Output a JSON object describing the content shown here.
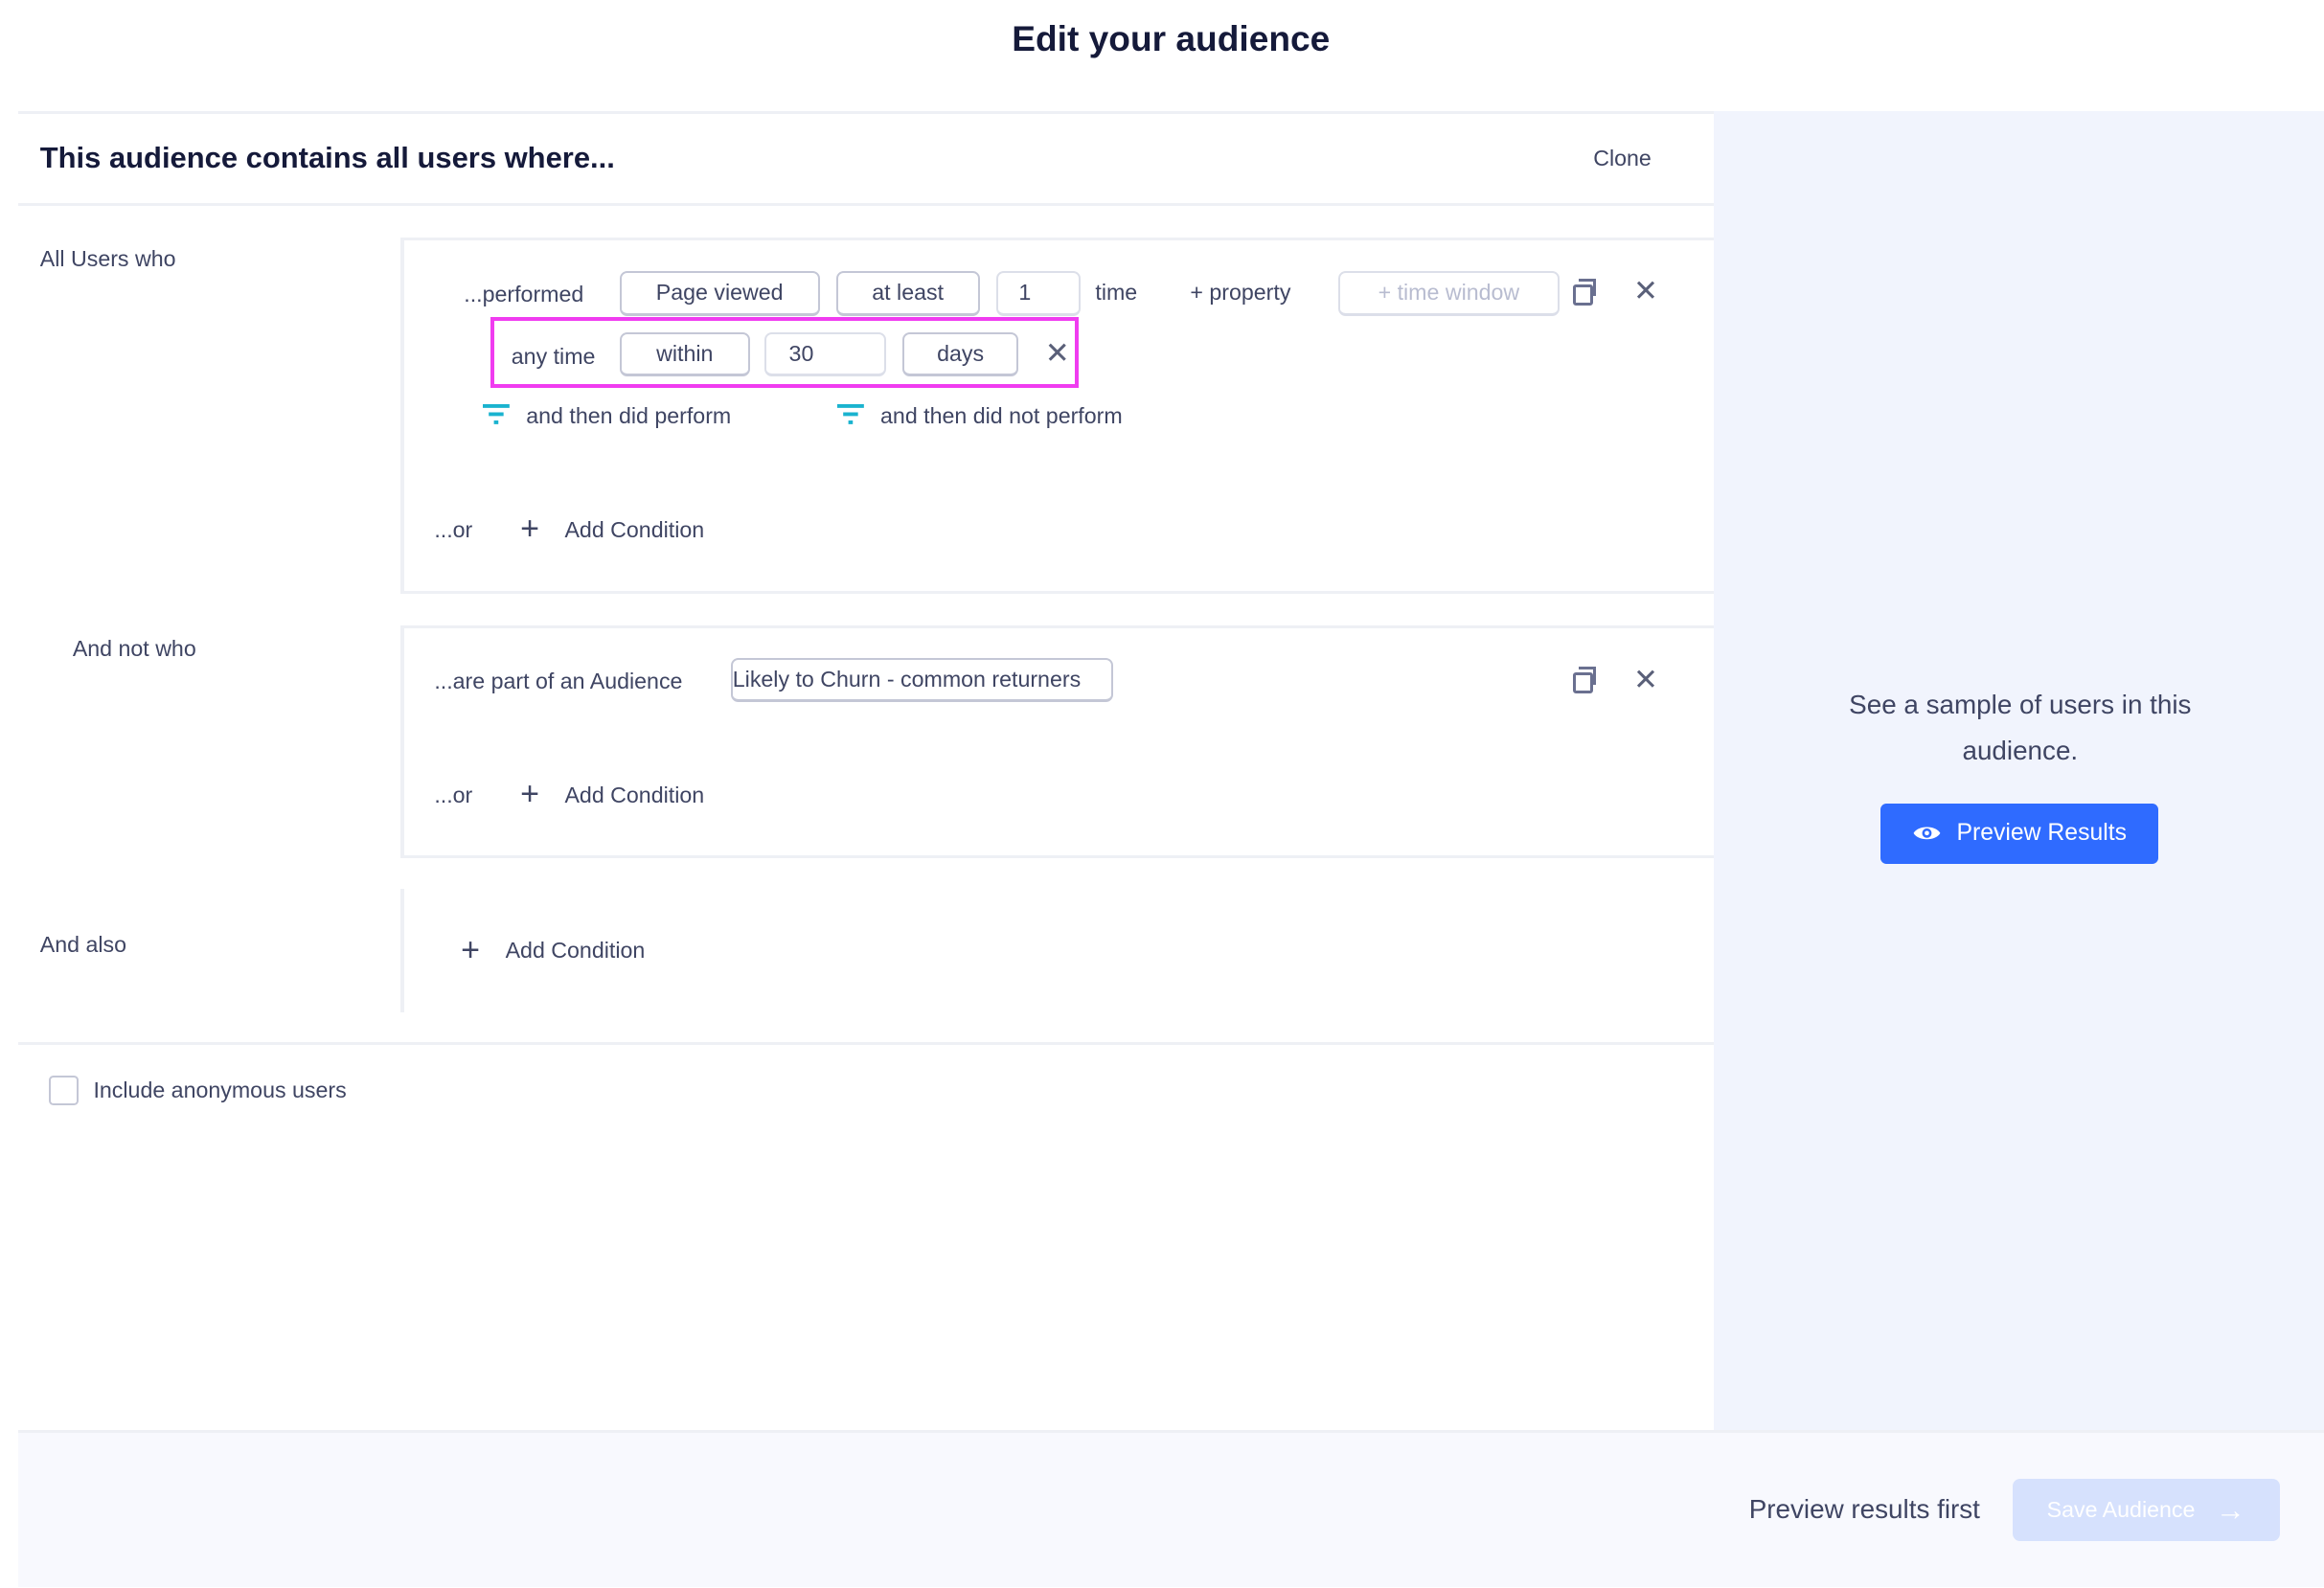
{
  "title": "Edit your audience",
  "header": {
    "text": "This audience contains all users where...",
    "clone_label": "Clone"
  },
  "group1": {
    "label": "All Users who",
    "performed_label": "...performed",
    "event": "Page viewed",
    "operator": "at least",
    "count": "1",
    "unit": "time",
    "property_label": "+ property",
    "time_window_label": "+ time window",
    "time": {
      "prefix": "any time",
      "mode": "within",
      "value": "30",
      "unit": "days"
    },
    "then_did": "and then did perform",
    "then_did_not": "and then did not perform",
    "or_label": "...or",
    "add_condition": "Add Condition"
  },
  "group2": {
    "label": "And not who",
    "audience_label": "...are part of an Audience",
    "audience_value": "Likely to Churn - common returners",
    "or_label": "...or",
    "add_condition": "Add Condition"
  },
  "group3": {
    "label": "And also",
    "add_condition": "Add Condition"
  },
  "anonymous": {
    "label": "Include anonymous users",
    "checked": false
  },
  "preview": {
    "text": "See a sample of users in this audience.",
    "button": "Preview Results"
  },
  "footer": {
    "hint": "Preview results first",
    "save": "Save Audience"
  },
  "colors": {
    "accent": "#2f6bff",
    "highlight": "#f03cf0",
    "filter_icon": "#1ab3cf",
    "save_disabled": "#d6e1fd"
  }
}
